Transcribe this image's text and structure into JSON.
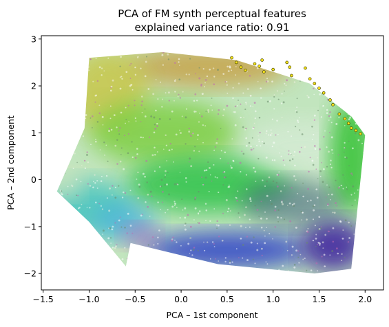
{
  "chart_data": {
    "type": "scatter",
    "title": "PCA of FM synth perceptual features",
    "subtitle": "explained variance ratio: 0.91",
    "xlabel": "PCA – 1st component",
    "ylabel": "PCA – 2nd component",
    "xlim": [
      -1.52,
      2.2
    ],
    "ylim": [
      -2.35,
      3.07
    ],
    "xticks": [
      -1.5,
      -1.0,
      -0.5,
      0.0,
      0.5,
      1.0,
      1.5,
      2.0
    ],
    "xtick_labels": [
      "−1.5",
      "−1.0",
      "−0.5",
      "0.0",
      "0.5",
      "1.0",
      "1.5",
      "2.0"
    ],
    "yticks": [
      -2,
      -1,
      0,
      1,
      2,
      3
    ],
    "ytick_labels": [
      "−2",
      "−1",
      "0",
      "1",
      "2",
      "3"
    ],
    "grid": false,
    "point_cloud": {
      "description_colors": {
        "upper_band": "#c89a3a",
        "upper_left": "#c8c23a",
        "middle": "#7acd3e",
        "center": "#2fc24a",
        "lower_left": "#41c2c0",
        "lower": "#2d3fc8",
        "lower_right": "#3a1f9e",
        "edges_magenta": "#c04ac0"
      },
      "boundary": [
        [
          -1.35,
          -0.25
        ],
        [
          -1.05,
          1.1
        ],
        [
          -1.0,
          2.6
        ],
        [
          -0.2,
          2.72
        ],
        [
          0.6,
          2.55
        ],
        [
          1.4,
          2.05
        ],
        [
          1.85,
          1.35
        ],
        [
          2.0,
          0.95
        ],
        [
          1.85,
          -1.9
        ],
        [
          1.45,
          -2.0
        ],
        [
          0.4,
          -1.8
        ],
        [
          -0.55,
          -1.35
        ],
        [
          -0.6,
          -1.85
        ],
        [
          -1.0,
          -0.9
        ],
        [
          -1.35,
          -0.25
        ]
      ]
    },
    "highlighted_points": {
      "color": "#f5e11a",
      "edge_color": "#4a4a00",
      "points": [
        [
          0.55,
          2.6
        ],
        [
          0.6,
          2.5
        ],
        [
          0.65,
          2.4
        ],
        [
          0.7,
          2.33
        ],
        [
          0.8,
          2.47
        ],
        [
          0.88,
          2.55
        ],
        [
          0.85,
          2.42
        ],
        [
          0.9,
          2.3
        ],
        [
          1.0,
          2.35
        ],
        [
          1.15,
          2.5
        ],
        [
          1.18,
          2.4
        ],
        [
          1.2,
          2.22
        ],
        [
          1.35,
          2.38
        ],
        [
          1.4,
          2.15
        ],
        [
          1.45,
          2.05
        ],
        [
          1.5,
          1.95
        ],
        [
          1.55,
          1.85
        ],
        [
          1.62,
          1.7
        ],
        [
          1.65,
          1.6
        ],
        [
          1.72,
          1.4
        ],
        [
          1.78,
          1.3
        ],
        [
          1.82,
          1.2
        ],
        [
          1.85,
          1.1
        ],
        [
          1.9,
          1.05
        ],
        [
          1.95,
          0.98
        ]
      ]
    }
  }
}
